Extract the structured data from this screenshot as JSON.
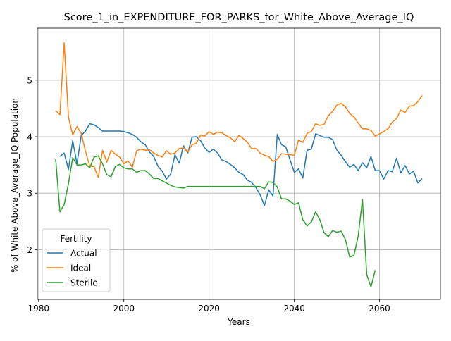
{
  "chart_data": {
    "type": "line",
    "title": "Score_1_in_EXPENDITURE_FOR_PARKS_for_White_Above_Average_IQ",
    "xlabel": "Years",
    "ylabel": "% of White Above_Average_IQ Population",
    "xlim": [
      1979.7,
      2074.3
    ],
    "ylim": [
      1.12,
      5.92
    ],
    "xticks": [
      1980,
      2000,
      2020,
      2040,
      2060
    ],
    "xtick_labels": [
      "1980",
      "2000",
      "2020",
      "2040",
      "2060"
    ],
    "yticks": [
      2,
      3,
      4,
      5
    ],
    "ytick_labels": [
      "2",
      "3",
      "4",
      "5"
    ],
    "grid": true,
    "legend": {
      "title": "Fertility",
      "placement": "lower-left"
    },
    "series": [
      {
        "name": "Actual",
        "color": "#1f77b4",
        "x": [
          1985,
          1986,
          1987,
          1988,
          1989,
          1990,
          1991,
          1992,
          1993,
          1994,
          1995,
          1996,
          1997,
          1998,
          1999,
          2000,
          2001,
          2002,
          2003,
          2004,
          2005,
          2006,
          2007,
          2008,
          2009,
          2010,
          2011,
          2012,
          2013,
          2014,
          2015,
          2016,
          2017,
          2018,
          2019,
          2020,
          2021,
          2022,
          2023,
          2024,
          2025,
          2026,
          2027,
          2028,
          2029,
          2030,
          2031,
          2032,
          2033,
          2034,
          2035,
          2036,
          2037,
          2038,
          2039,
          2040,
          2041,
          2042,
          2043,
          2044,
          2045,
          2046,
          2047,
          2048,
          2049,
          2050,
          2051,
          2052,
          2053,
          2054,
          2055,
          2056,
          2057,
          2058,
          2059,
          2060,
          2061,
          2062,
          2063,
          2064,
          2065,
          2066,
          2067,
          2068,
          2069,
          2070
        ],
        "values": [
          3.65,
          3.71,
          3.42,
          3.93,
          3.52,
          4.02,
          4.1,
          4.23,
          4.21,
          4.16,
          4.1,
          4.1,
          4.1,
          4.1,
          4.1,
          4.09,
          4.07,
          4.04,
          3.99,
          3.91,
          3.86,
          3.73,
          3.65,
          3.48,
          3.39,
          3.25,
          3.34,
          3.68,
          3.53,
          3.84,
          3.71,
          3.99,
          4.0,
          3.93,
          3.8,
          3.72,
          3.78,
          3.71,
          3.59,
          3.56,
          3.51,
          3.45,
          3.37,
          3.33,
          3.23,
          3.19,
          3.1,
          2.97,
          2.78,
          3.06,
          2.95,
          4.04,
          3.86,
          3.82,
          3.59,
          3.37,
          3.43,
          3.27,
          3.76,
          3.78,
          4.05,
          4.02,
          3.99,
          3.99,
          3.95,
          3.76,
          3.67,
          3.56,
          3.46,
          3.51,
          3.4,
          3.54,
          3.45,
          3.65,
          3.4,
          3.4,
          3.25,
          3.4,
          3.38,
          3.62,
          3.36,
          3.49,
          3.34,
          3.39,
          3.18,
          3.26
        ]
      },
      {
        "name": "Ideal",
        "color": "#ff7f0e",
        "x": [
          1984,
          1985,
          1986,
          1987,
          1988,
          1989,
          1990,
          1991,
          1992,
          1993,
          1994,
          1995,
          1996,
          1997,
          1998,
          1999,
          2000,
          2001,
          2002,
          2003,
          2004,
          2005,
          2006,
          2007,
          2008,
          2009,
          2010,
          2011,
          2012,
          2013,
          2014,
          2015,
          2016,
          2017,
          2018,
          2019,
          2020,
          2021,
          2022,
          2023,
          2024,
          2025,
          2026,
          2027,
          2028,
          2029,
          2030,
          2031,
          2032,
          2033,
          2034,
          2035,
          2036,
          2037,
          2038,
          2039,
          2040,
          2041,
          2042,
          2043,
          2044,
          2045,
          2046,
          2047,
          2048,
          2049,
          2050,
          2051,
          2052,
          2053,
          2054,
          2055,
          2056,
          2057,
          2058,
          2059,
          2060,
          2061,
          2062,
          2063,
          2064,
          2065,
          2066,
          2067,
          2068,
          2069,
          2070
        ],
        "values": [
          4.46,
          4.39,
          5.66,
          4.35,
          4.03,
          4.18,
          4.06,
          3.74,
          3.48,
          3.47,
          3.28,
          3.76,
          3.55,
          3.76,
          3.69,
          3.64,
          3.52,
          3.57,
          3.46,
          3.75,
          3.78,
          3.76,
          3.77,
          3.71,
          3.67,
          3.64,
          3.75,
          3.69,
          3.71,
          3.79,
          3.8,
          3.73,
          3.86,
          3.88,
          4.03,
          4.01,
          4.09,
          4.04,
          4.08,
          4.07,
          4.02,
          3.98,
          3.91,
          4.02,
          3.97,
          3.9,
          3.79,
          3.79,
          3.71,
          3.67,
          3.65,
          3.56,
          3.6,
          3.7,
          3.69,
          3.68,
          3.67,
          3.94,
          3.9,
          4.06,
          4.09,
          4.23,
          4.2,
          4.22,
          4.37,
          4.45,
          4.56,
          4.59,
          4.53,
          4.41,
          4.35,
          4.24,
          4.14,
          4.14,
          4.11,
          4.01,
          4.05,
          4.09,
          4.14,
          4.26,
          4.32,
          4.47,
          4.43,
          4.54,
          4.55,
          4.62,
          4.73
        ]
      },
      {
        "name": "Sterile",
        "color": "#2ca02c",
        "x": [
          1984,
          1985,
          1986,
          1987,
          1988,
          1989,
          1990,
          1991,
          1992,
          1993,
          1994,
          1995,
          1996,
          1997,
          1998,
          1999,
          2000,
          2001,
          2002,
          2003,
          2004,
          2005,
          2006,
          2007,
          2008,
          2009,
          2010,
          2011,
          2012,
          2013,
          2014,
          2015,
          2016,
          2017,
          2018,
          2019,
          2020,
          2021,
          2022,
          2023,
          2024,
          2025,
          2026,
          2027,
          2028,
          2029,
          2030,
          2031,
          2032,
          2033,
          2034,
          2035,
          2036,
          2037,
          2038,
          2039,
          2040,
          2041,
          2042,
          2043,
          2044,
          2045,
          2046,
          2047,
          2048,
          2049,
          2050,
          2051,
          2052,
          2053,
          2054,
          2055,
          2056,
          2057,
          2058,
          2059
        ],
        "values": [
          3.6,
          2.67,
          2.8,
          3.17,
          3.63,
          3.5,
          3.5,
          3.52,
          3.45,
          3.64,
          3.66,
          3.52,
          3.33,
          3.29,
          3.47,
          3.51,
          3.45,
          3.43,
          3.43,
          3.37,
          3.4,
          3.4,
          3.34,
          3.26,
          3.26,
          3.22,
          3.18,
          3.14,
          3.11,
          3.1,
          3.09,
          3.12,
          3.12,
          3.12,
          3.12,
          3.12,
          3.12,
          3.12,
          3.12,
          3.12,
          3.12,
          3.12,
          3.12,
          3.12,
          3.12,
          3.12,
          3.12,
          3.12,
          3.12,
          3.08,
          3.2,
          3.19,
          3.11,
          2.9,
          2.9,
          2.86,
          2.8,
          2.83,
          2.53,
          2.42,
          2.49,
          2.67,
          2.53,
          2.3,
          2.23,
          2.34,
          2.31,
          2.33,
          2.18,
          1.87,
          1.9,
          2.24,
          2.89,
          1.56,
          1.34,
          1.64
        ]
      }
    ]
  }
}
